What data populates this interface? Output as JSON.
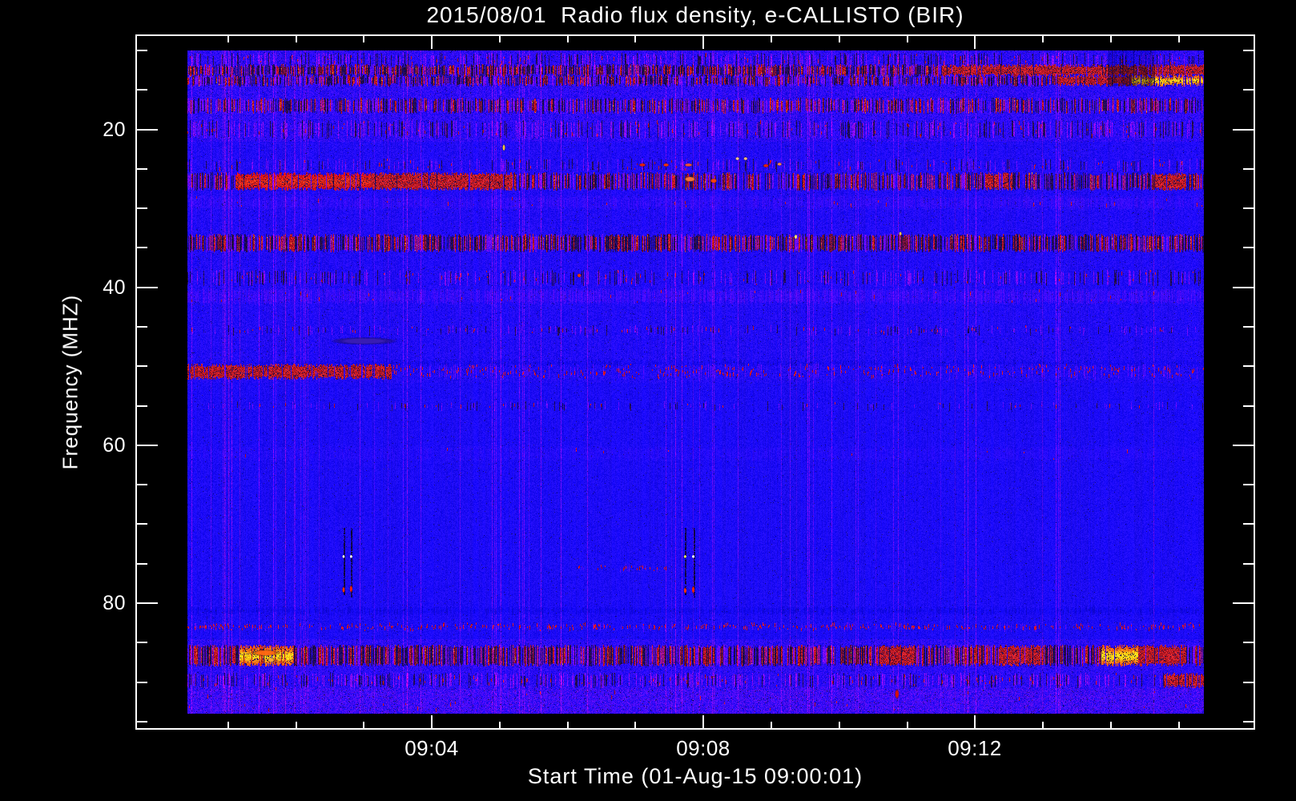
{
  "chart": {
    "title": "2015/08/01  Radio flux density, e-CALLISTO (BIR)",
    "x_label": "Start Time (01-Aug-15 09:00:01)",
    "y_label": "Frequency (MHZ)"
  },
  "chart_data": {
    "type": "heatmap",
    "subtype": "radio-spectrogram",
    "title": "2015/08/01  Radio flux density, e-CALLISTO (BIR)",
    "xlabel": "Start Time (01-Aug-15 09:00:01)",
    "ylabel": "Frequency (MHZ)",
    "instrument": "e-CALLISTO (BIR)",
    "date": "2015/08/01",
    "time_start_label": "01-Aug-15 09:00:01",
    "time_range_min": [
      0.4,
      15.37
    ],
    "freq_range_mhz": [
      10.0,
      94.0
    ],
    "grid": false,
    "x_axis": {
      "major_ticks": [
        {
          "minute": 4,
          "label": "09:04"
        },
        {
          "minute": 8,
          "label": "09:08"
        },
        {
          "minute": 12,
          "label": "09:12"
        }
      ],
      "minor_tick_minutes": [
        1,
        2,
        3,
        5,
        6,
        7,
        9,
        10,
        11,
        13,
        14,
        15
      ]
    },
    "y_axis": {
      "major_ticks": [
        {
          "mhz": 20,
          "label": "20"
        },
        {
          "mhz": 40,
          "label": "40"
        },
        {
          "mhz": 60,
          "label": "60"
        },
        {
          "mhz": 80,
          "label": "80"
        }
      ],
      "minor_tick_mhz": [
        10,
        15,
        25,
        30,
        35,
        45,
        50,
        55,
        65,
        70,
        75,
        85,
        90,
        95
      ]
    },
    "palette": {
      "base_blue": "#1e0ad8",
      "purple_noise": "#5a18c8",
      "rfi_red": "#d41800",
      "hot_orange": "#ff8820",
      "hot_yellow": "#ffdd55",
      "hot_white": "#ffffff",
      "dark_fade": "#06031a",
      "frame_white": "#ffffff",
      "page_black": "#000000"
    },
    "bands": [
      {
        "f_lo": 10.5,
        "f_hi": 11.9,
        "style": "speckle_mix",
        "strength": 0.55
      },
      {
        "f_lo": 11.9,
        "f_hi": 13.1,
        "style": "dark_red_mix",
        "strength": 0.9,
        "segments": [
          {
            "t_lo": 11.5,
            "t_hi": 15.37,
            "color": "red",
            "strength": 0.85
          }
        ]
      },
      {
        "f_lo": 13.2,
        "f_hi": 14.4,
        "style": "dark_red_mix",
        "strength": 0.75,
        "segments": [
          {
            "t_lo": 13.2,
            "t_hi": 14.3,
            "color": "red",
            "strength": 0.8
          },
          {
            "t_lo": 14.3,
            "t_hi": 15.37,
            "color": "bright_orange",
            "strength": 1.0
          }
        ]
      },
      {
        "f_lo": 16.2,
        "f_hi": 17.8,
        "style": "dark_red_mix",
        "strength": 0.6
      },
      {
        "f_lo": 19.0,
        "f_hi": 21.0,
        "style": "speckle_mix",
        "strength": 0.6
      },
      {
        "f_lo": 23.9,
        "f_hi": 25.2,
        "style": "thin_speckle",
        "strength": 0.45
      },
      {
        "f_lo": 25.6,
        "f_hi": 27.6,
        "style": "dark_red_mix",
        "strength": 0.7,
        "segments": [
          {
            "t_lo": 1.1,
            "t_hi": 3.1,
            "color": "bright_red",
            "strength": 1.0
          },
          {
            "t_lo": 3.1,
            "t_hi": 5.2,
            "color": "red",
            "strength": 0.7
          },
          {
            "t_lo": 12.15,
            "t_hi": 12.55,
            "color": "red",
            "strength": 0.55
          },
          {
            "t_lo": 14.65,
            "t_hi": 15.1,
            "color": "red",
            "strength": 0.6
          }
        ]
      },
      {
        "f_lo": 28.6,
        "f_hi": 30.0,
        "style": "purple_speckle",
        "strength": 0.35
      },
      {
        "f_lo": 33.4,
        "f_hi": 35.4,
        "style": "dark_red_mix",
        "strength": 0.85
      },
      {
        "f_lo": 38.0,
        "f_hi": 39.6,
        "style": "speckle_mix",
        "strength": 0.45
      },
      {
        "f_lo": 40.3,
        "f_hi": 42.0,
        "style": "purple_speckle",
        "strength": 0.55
      },
      {
        "f_lo": 45.0,
        "f_hi": 45.9,
        "style": "thin_speckle",
        "strength": 0.35
      },
      {
        "f_lo": 49.4,
        "f_hi": 49.9,
        "style": "faint_dark",
        "strength": 0.5
      },
      {
        "f_lo": 49.9,
        "f_hi": 51.5,
        "style": "red_speckle",
        "strength": 0.55,
        "segments": [
          {
            "t_lo": 0.4,
            "t_hi": 3.4,
            "color": "red",
            "strength": 0.9
          }
        ]
      },
      {
        "f_lo": 54.6,
        "f_hi": 55.4,
        "style": "thin_speckle",
        "strength": 0.22
      },
      {
        "f_lo": 60.3,
        "f_hi": 61.8,
        "style": "purple_speckle",
        "strength": 0.18
      },
      {
        "f_lo": 75.2,
        "f_hi": 75.9,
        "style": "red_speckle",
        "strength": 0.3,
        "x_extent": [
          6.0,
          7.5
        ]
      },
      {
        "f_lo": 80.6,
        "f_hi": 81.3,
        "style": "faint_dark",
        "strength": 0.35
      },
      {
        "f_lo": 82.6,
        "f_hi": 83.4,
        "style": "red_speckle",
        "strength": 0.5
      },
      {
        "f_lo": 85.5,
        "f_hi": 87.8,
        "style": "dark_red_mix",
        "strength": 0.9,
        "segments": [
          {
            "t_lo": 1.15,
            "t_hi": 1.95,
            "color": "bright_orange",
            "strength": 0.95
          },
          {
            "t_lo": 10.6,
            "t_hi": 11.1,
            "color": "red",
            "strength": 0.7
          },
          {
            "t_lo": 12.35,
            "t_hi": 13.0,
            "color": "red",
            "strength": 0.9
          },
          {
            "t_lo": 13.85,
            "t_hi": 14.4,
            "color": "bright_orange",
            "strength": 1.0
          },
          {
            "t_lo": 14.4,
            "t_hi": 15.1,
            "color": "red",
            "strength": 0.85
          }
        ]
      },
      {
        "f_lo": 89.0,
        "f_hi": 90.6,
        "style": "speckle_mix",
        "strength": 0.6,
        "segments": [
          {
            "t_lo": 14.77,
            "t_hi": 15.37,
            "color": "red",
            "strength": 0.8
          }
        ]
      },
      {
        "f_lo": 90.8,
        "f_hi": 94.0,
        "style": "noisy_purple",
        "strength": 0.55
      }
    ],
    "dark_patches": [
      {
        "t_lo": 13.95,
        "t_hi": 14.65,
        "f_lo": 10.0,
        "f_hi": 14.6
      }
    ],
    "vlines": [
      {
        "t": 2.7,
        "f_lo": 70.5,
        "f_hi": 79.0
      },
      {
        "t": 2.81,
        "f_lo": 70.5,
        "f_hi": 79.3
      },
      {
        "t": 7.73,
        "f_lo": 70.5,
        "f_hi": 79.0
      },
      {
        "t": 7.85,
        "f_lo": 70.5,
        "f_hi": 79.3
      }
    ],
    "spots": [
      {
        "t": 5.06,
        "f": 22.3,
        "w_min": 0.05,
        "h_mhz": 1.0,
        "color": "#ffcc33"
      },
      {
        "t": 7.1,
        "f": 24.5,
        "w_min": 0.12,
        "h_mhz": 0.5,
        "color": "#ee2200"
      },
      {
        "t": 7.45,
        "f": 24.5,
        "w_min": 0.1,
        "h_mhz": 0.5,
        "color": "#ff3300"
      },
      {
        "t": 7.78,
        "f": 24.5,
        "w_min": 0.14,
        "h_mhz": 0.5,
        "color": "#ff5522"
      },
      {
        "t": 8.5,
        "f": 23.7,
        "w_min": 0.07,
        "h_mhz": 0.5,
        "color": "#ffcc88"
      },
      {
        "t": 8.62,
        "f": 23.7,
        "w_min": 0.07,
        "h_mhz": 0.5,
        "color": "#ffbb77"
      },
      {
        "t": 8.92,
        "f": 24.6,
        "w_min": 0.1,
        "h_mhz": 0.5,
        "color": "#ee2200"
      },
      {
        "t": 9.12,
        "f": 24.4,
        "w_min": 0.08,
        "h_mhz": 0.5,
        "color": "#ff8844"
      },
      {
        "t": 7.8,
        "f": 26.3,
        "w_min": 0.2,
        "h_mhz": 0.8,
        "color": "#ff7733"
      },
      {
        "t": 8.15,
        "f": 26.5,
        "w_min": 0.12,
        "h_mhz": 0.7,
        "color": "#ff4400"
      },
      {
        "t": 9.36,
        "f": 33.6,
        "w_min": 0.05,
        "h_mhz": 0.7,
        "color": "#ffee66"
      },
      {
        "t": 10.9,
        "f": 33.2,
        "w_min": 0.05,
        "h_mhz": 0.6,
        "color": "#ffcc44"
      },
      {
        "t": 6.17,
        "f": 38.5,
        "w_min": 0.07,
        "h_mhz": 0.6,
        "color": "#ee3300"
      },
      {
        "t": 3.0,
        "f": 46.8,
        "w_min": 1.0,
        "h_mhz": 1.0,
        "color": "#3a1db0"
      },
      {
        "t": 2.7,
        "f": 74.1,
        "w_min": 0.05,
        "h_mhz": 0.5,
        "color": "#ffffff"
      },
      {
        "t": 2.81,
        "f": 74.1,
        "w_min": 0.05,
        "h_mhz": 0.5,
        "color": "#ffffff"
      },
      {
        "t": 2.7,
        "f": 78.3,
        "w_min": 0.05,
        "h_mhz": 0.9,
        "color": "#ff3300"
      },
      {
        "t": 2.81,
        "f": 78.2,
        "w_min": 0.05,
        "h_mhz": 1.1,
        "color": "#ff2200"
      },
      {
        "t": 7.73,
        "f": 74.1,
        "w_min": 0.05,
        "h_mhz": 0.5,
        "color": "#eeee66"
      },
      {
        "t": 7.85,
        "f": 74.1,
        "w_min": 0.05,
        "h_mhz": 0.5,
        "color": "#ffffff"
      },
      {
        "t": 7.73,
        "f": 78.4,
        "w_min": 0.05,
        "h_mhz": 0.9,
        "color": "#ff3300"
      },
      {
        "t": 7.85,
        "f": 78.3,
        "w_min": 0.05,
        "h_mhz": 1.1,
        "color": "#ff2200"
      },
      {
        "t": 1.55,
        "f": 86.3,
        "w_min": 0.45,
        "h_mhz": 0.9,
        "color": "#ff6611"
      },
      {
        "t": 1.63,
        "f": 87.2,
        "w_min": 0.12,
        "h_mhz": 0.7,
        "color": "#ffaa33"
      },
      {
        "t": 10.85,
        "f": 91.5,
        "w_min": 0.07,
        "h_mhz": 1.4,
        "color": "#dd1100"
      }
    ]
  }
}
